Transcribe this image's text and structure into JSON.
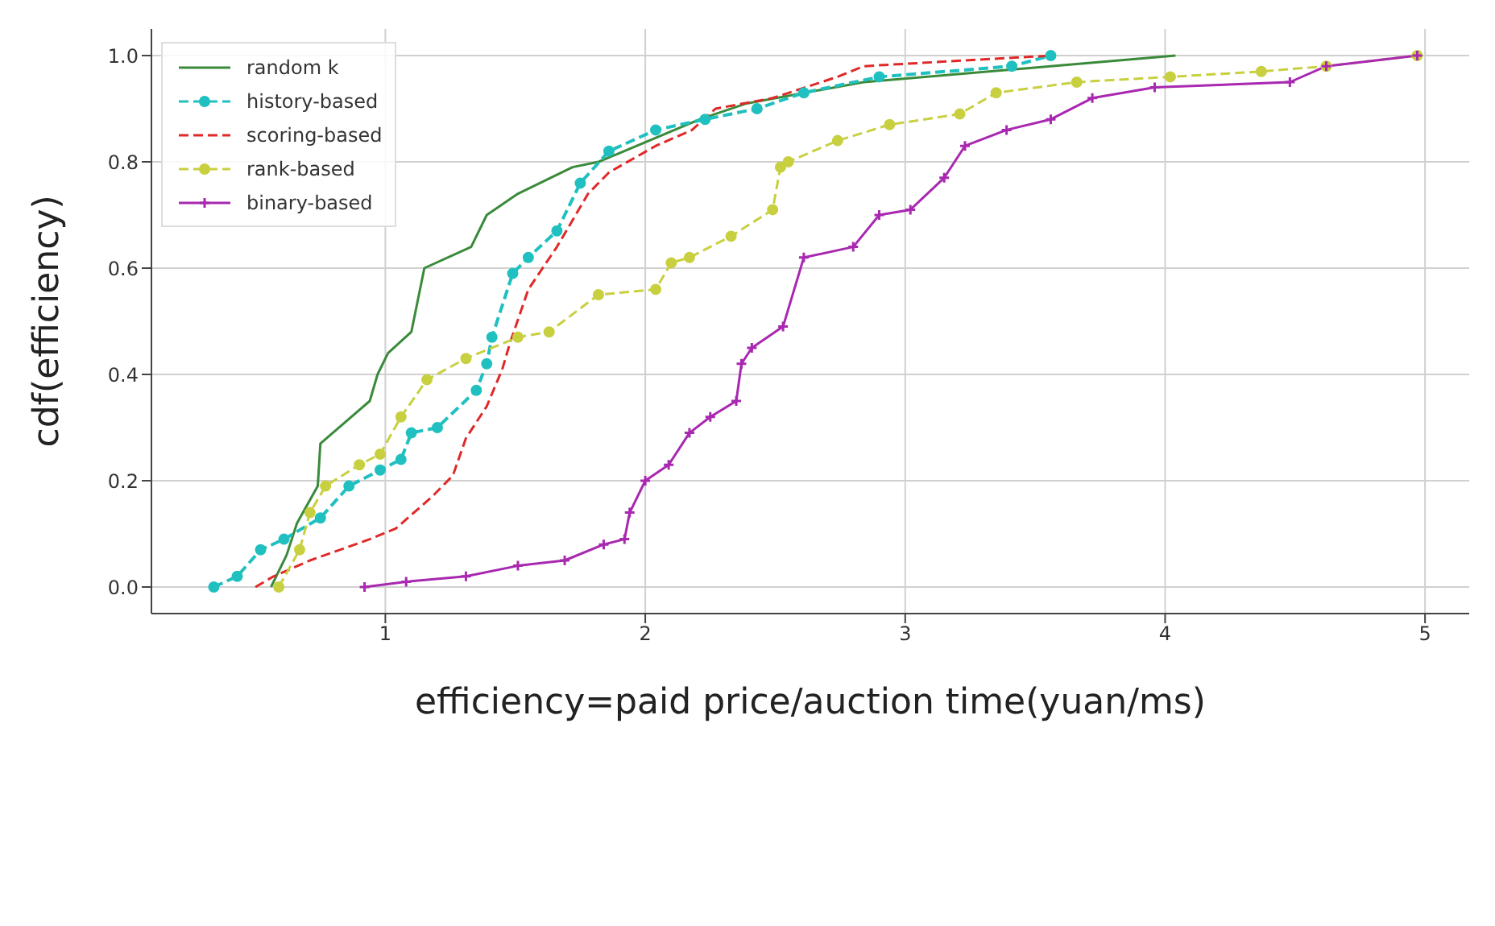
{
  "chart_data": {
    "type": "line",
    "xlabel": "efficiency=paid price/auction time(yuan/ms)",
    "ylabel": "cdf(efficiency)",
    "xlim": [
      0.1,
      5.17
    ],
    "ylim": [
      -0.05,
      1.05
    ],
    "xticks": [
      1,
      2,
      3,
      4,
      5
    ],
    "yticks": [
      {
        "value": 0,
        "label": "0.0"
      },
      {
        "value": 0.2,
        "label": "0.2"
      },
      {
        "value": 0.4,
        "label": "0.4"
      },
      {
        "value": 0.6,
        "label": "0.6"
      },
      {
        "value": 0.8,
        "label": "0.8"
      },
      {
        "value": 1,
        "label": "1.0"
      }
    ],
    "grid": true,
    "legend": "top left",
    "series": [
      {
        "name": "random k",
        "color": "#3a8a3a",
        "line_style": "solid",
        "marker": "none",
        "x": [
          0.56,
          0.62,
          0.66,
          0.74,
          0.75,
          0.94,
          0.97,
          1.01,
          1.1,
          1.15,
          1.33,
          1.39,
          1.51,
          1.72,
          1.82,
          2.21,
          2.39,
          2.84,
          3.56,
          4.04
        ],
        "values": [
          0,
          0.06,
          0.12,
          0.19,
          0.27,
          0.35,
          0.4,
          0.44,
          0.48,
          0.6,
          0.64,
          0.7,
          0.74,
          0.79,
          0.8,
          0.88,
          0.91,
          0.95,
          0.98,
          1.0
        ]
      },
      {
        "name": "history-based",
        "color": "#20c0c0",
        "line_style": "dashed",
        "marker": "circle",
        "x": [
          0.34,
          0.43,
          0.52,
          0.61,
          0.75,
          0.86,
          0.98,
          1.06,
          1.1,
          1.2,
          1.35,
          1.39,
          1.41,
          1.49,
          1.55,
          1.66,
          1.75,
          1.86,
          2.04,
          2.23,
          2.43,
          2.61,
          2.9,
          3.41,
          3.56
        ],
        "values": [
          0,
          0.02,
          0.07,
          0.09,
          0.13,
          0.19,
          0.22,
          0.24,
          0.29,
          0.3,
          0.37,
          0.42,
          0.47,
          0.59,
          0.62,
          0.67,
          0.76,
          0.82,
          0.86,
          0.88,
          0.9,
          0.93,
          0.96,
          0.98,
          1.0
        ]
      },
      {
        "name": "scoring-based",
        "color": "#e02828",
        "line_style": "dashed",
        "marker": "none",
        "x": [
          0.5,
          0.57,
          0.71,
          0.94,
          1.04,
          1.18,
          1.26,
          1.31,
          1.39,
          1.45,
          1.48,
          1.55,
          1.66,
          1.78,
          1.86,
          2.04,
          2.18,
          2.27,
          2.49,
          2.74,
          2.84,
          3.56
        ],
        "values": [
          0,
          0.02,
          0.05,
          0.09,
          0.11,
          0.17,
          0.21,
          0.28,
          0.34,
          0.41,
          0.46,
          0.56,
          0.64,
          0.74,
          0.78,
          0.83,
          0.86,
          0.9,
          0.92,
          0.96,
          0.98,
          1.0
        ]
      },
      {
        "name": "rank-based",
        "color": "#c8d040",
        "line_style": "dashed",
        "marker": "circle",
        "x": [
          0.59,
          0.67,
          0.71,
          0.77,
          0.9,
          0.98,
          1.06,
          1.16,
          1.31,
          1.51,
          1.63,
          1.82,
          2.04,
          2.1,
          2.17,
          2.33,
          2.49,
          2.52,
          2.55,
          2.74,
          2.94,
          3.21,
          3.35,
          3.66,
          4.02,
          4.37,
          4.62,
          4.97
        ],
        "values": [
          0,
          0.07,
          0.14,
          0.19,
          0.23,
          0.25,
          0.32,
          0.39,
          0.43,
          0.47,
          0.48,
          0.55,
          0.56,
          0.61,
          0.62,
          0.66,
          0.71,
          0.79,
          0.8,
          0.84,
          0.87,
          0.89,
          0.93,
          0.95,
          0.96,
          0.97,
          0.98,
          1.0
        ]
      },
      {
        "name": "binary-based",
        "color": "#a828b0",
        "line_style": "solid",
        "marker": "cross",
        "x": [
          0.92,
          1.08,
          1.31,
          1.51,
          1.69,
          1.84,
          1.92,
          1.94,
          2.0,
          2.09,
          2.17,
          2.25,
          2.35,
          2.37,
          2.41,
          2.53,
          2.61,
          2.8,
          2.9,
          3.02,
          3.15,
          3.23,
          3.39,
          3.56,
          3.72,
          3.96,
          4.48,
          4.62,
          4.97
        ],
        "values": [
          0,
          0.01,
          0.02,
          0.04,
          0.05,
          0.08,
          0.09,
          0.14,
          0.2,
          0.23,
          0.29,
          0.32,
          0.35,
          0.42,
          0.45,
          0.49,
          0.62,
          0.64,
          0.7,
          0.71,
          0.77,
          0.83,
          0.86,
          0.88,
          0.92,
          0.94,
          0.95,
          0.98,
          1.0
        ]
      }
    ]
  }
}
